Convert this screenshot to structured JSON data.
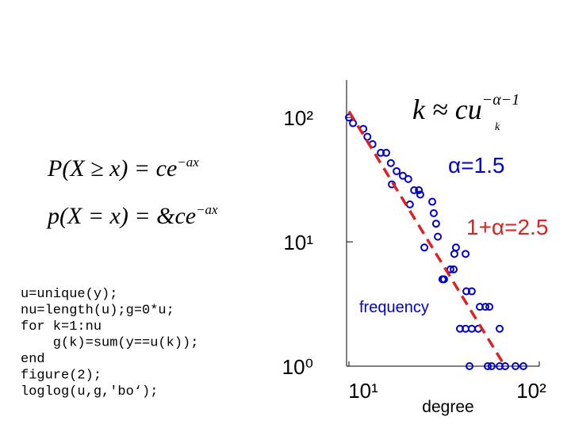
{
  "chart_data": {
    "type": "scatter",
    "log_x": true,
    "log_y": true,
    "xlabel": "degree",
    "xlim": [
      10,
      100
    ],
    "ylim": [
      1,
      200
    ],
    "xticks": [
      {
        "value": 10,
        "label": "10¹"
      },
      {
        "value": 100,
        "label": "10²"
      }
    ],
    "yticks": [
      {
        "value": 1,
        "label": "10⁰"
      },
      {
        "value": 10,
        "label": "10¹"
      },
      {
        "value": 100,
        "label": "10²"
      }
    ],
    "series": [
      {
        "color": "#0000cc",
        "marker": "circle",
        "x": [
          10,
          10.5,
          11.9,
          12.5,
          13.3,
          14.7,
          15.7,
          16.6,
          17.8,
          19.2,
          20.5,
          16.8,
          22,
          23.3,
          23.7,
          20.9,
          27.4,
          27.9,
          28.7,
          29.3,
          24.9,
          36.5,
          41,
          35.8,
          34.1,
          35.5,
          31,
          31.6,
          41.4,
          44.2,
          48.7,
          52.1,
          54.7,
          38.3,
          41,
          44.2,
          47.8,
          61.9,
          43,
          53.6,
          56.2,
          61.9,
          66.2,
          75,
          82.5
        ],
        "values": [
          100,
          90,
          81,
          70,
          61,
          52,
          52,
          43,
          37,
          34,
          32,
          29,
          26,
          26,
          24,
          20,
          21,
          17,
          14,
          11,
          9,
          9,
          8,
          8,
          6,
          6,
          5,
          5,
          4,
          4,
          3,
          3,
          3,
          2,
          2,
          2,
          2,
          2,
          1,
          1,
          1,
          1,
          1,
          1,
          1
        ]
      },
      {
        "color": "#dd2222",
        "style": "dashed",
        "x": [
          10,
          66
        ],
        "values": [
          112,
          1
        ]
      }
    ],
    "annotations": [
      {
        "text": "α=1.5",
        "color": "#0000cc"
      },
      {
        "text": "1+α=2.5",
        "color": "#dd2222"
      },
      {
        "text": "frequency",
        "color": "#0000cc"
      }
    ],
    "formula": {
      "base": "k ≈ cu",
      "sup": "−α−1",
      "sub": "k"
    }
  },
  "slide": {
    "formulas": [
      {
        "text": "P(X ≥ x) = ce",
        "sup": "−ax"
      },
      {
        "text": "p(X = x) = &ce",
        "sup": "−ax"
      }
    ],
    "code": [
      "u=unique(y);",
      "nu=length(u);g=0*u;",
      "for k=1:nu",
      "    g(k)=sum(y==u(k));",
      "end",
      "figure(2);",
      "loglog(u,g,'bo‘);"
    ]
  }
}
